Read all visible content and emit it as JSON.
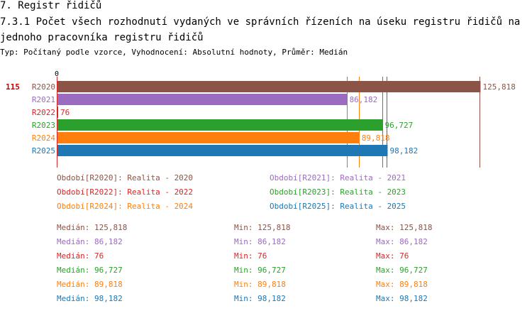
{
  "header": {
    "section": "7. Registr řidičů",
    "title": "7.3.1 Počet všech rozhodnutí vydaných ve správních řízeních na úseku registru řidičů na jednoho pracovníka registru řidičů",
    "subtitle": "Typ: Počítaný podle vzorce, Vyhodnocení: Absolutní hodnoty, Průměr: Medián"
  },
  "chart_data": {
    "type": "bar",
    "orientation": "horizontal",
    "axis_zero_label": "0",
    "xlim": [
      0,
      135000
    ],
    "marker": {
      "label": "115",
      "color": "#cc0000"
    },
    "categories": [
      "R2020",
      "R2021",
      "R2022",
      "R2023",
      "R2024",
      "R2025"
    ],
    "values": [
      125818,
      86182,
      76,
      96727,
      89818,
      98182
    ],
    "value_labels": [
      "125,818",
      "86,182",
      "76",
      "96,727",
      "89,818",
      "98,182"
    ],
    "median_lines": [
      125818,
      86182,
      76,
      96727,
      89818,
      98182
    ],
    "colors": [
      "#8b5446",
      "#9b6bbf",
      "#d62728",
      "#2ca02c",
      "#ff7f0e",
      "#1f77b4"
    ]
  },
  "legend": [
    {
      "label": "Období[R2020]: Realita - 2020",
      "color": "#8b5446"
    },
    {
      "label": "Období[R2021]: Realita - 2021",
      "color": "#9b6bbf"
    },
    {
      "label": "Období[R2022]: Realita - 2022",
      "color": "#d62728"
    },
    {
      "label": "Období[R2023]: Realita - 2023",
      "color": "#2ca02c"
    },
    {
      "label": "Období[R2024]: Realita - 2024",
      "color": "#ff7f0e"
    },
    {
      "label": "Období[R2025]: Realita - 2025",
      "color": "#1f77b4"
    }
  ],
  "stats": [
    {
      "median": "Medián: 125,818",
      "min": "Min: 125,818",
      "max": "Max: 125,818",
      "color": "#8b5446"
    },
    {
      "median": "Medián: 86,182",
      "min": "Min: 86,182",
      "max": "Max: 86,182",
      "color": "#9b6bbf"
    },
    {
      "median": "Medián: 76",
      "min": "Min: 76",
      "max": "Max: 76",
      "color": "#d62728"
    },
    {
      "median": "Medián: 96,727",
      "min": "Min: 96,727",
      "max": "Max: 96,727",
      "color": "#2ca02c"
    },
    {
      "median": "Medián: 89,818",
      "min": "Min: 89,818",
      "max": "Max: 89,818",
      "color": "#ff7f0e"
    },
    {
      "median": "Medián: 98,182",
      "min": "Min: 98,182",
      "max": "Max: 98,182",
      "color": "#1f77b4"
    }
  ]
}
